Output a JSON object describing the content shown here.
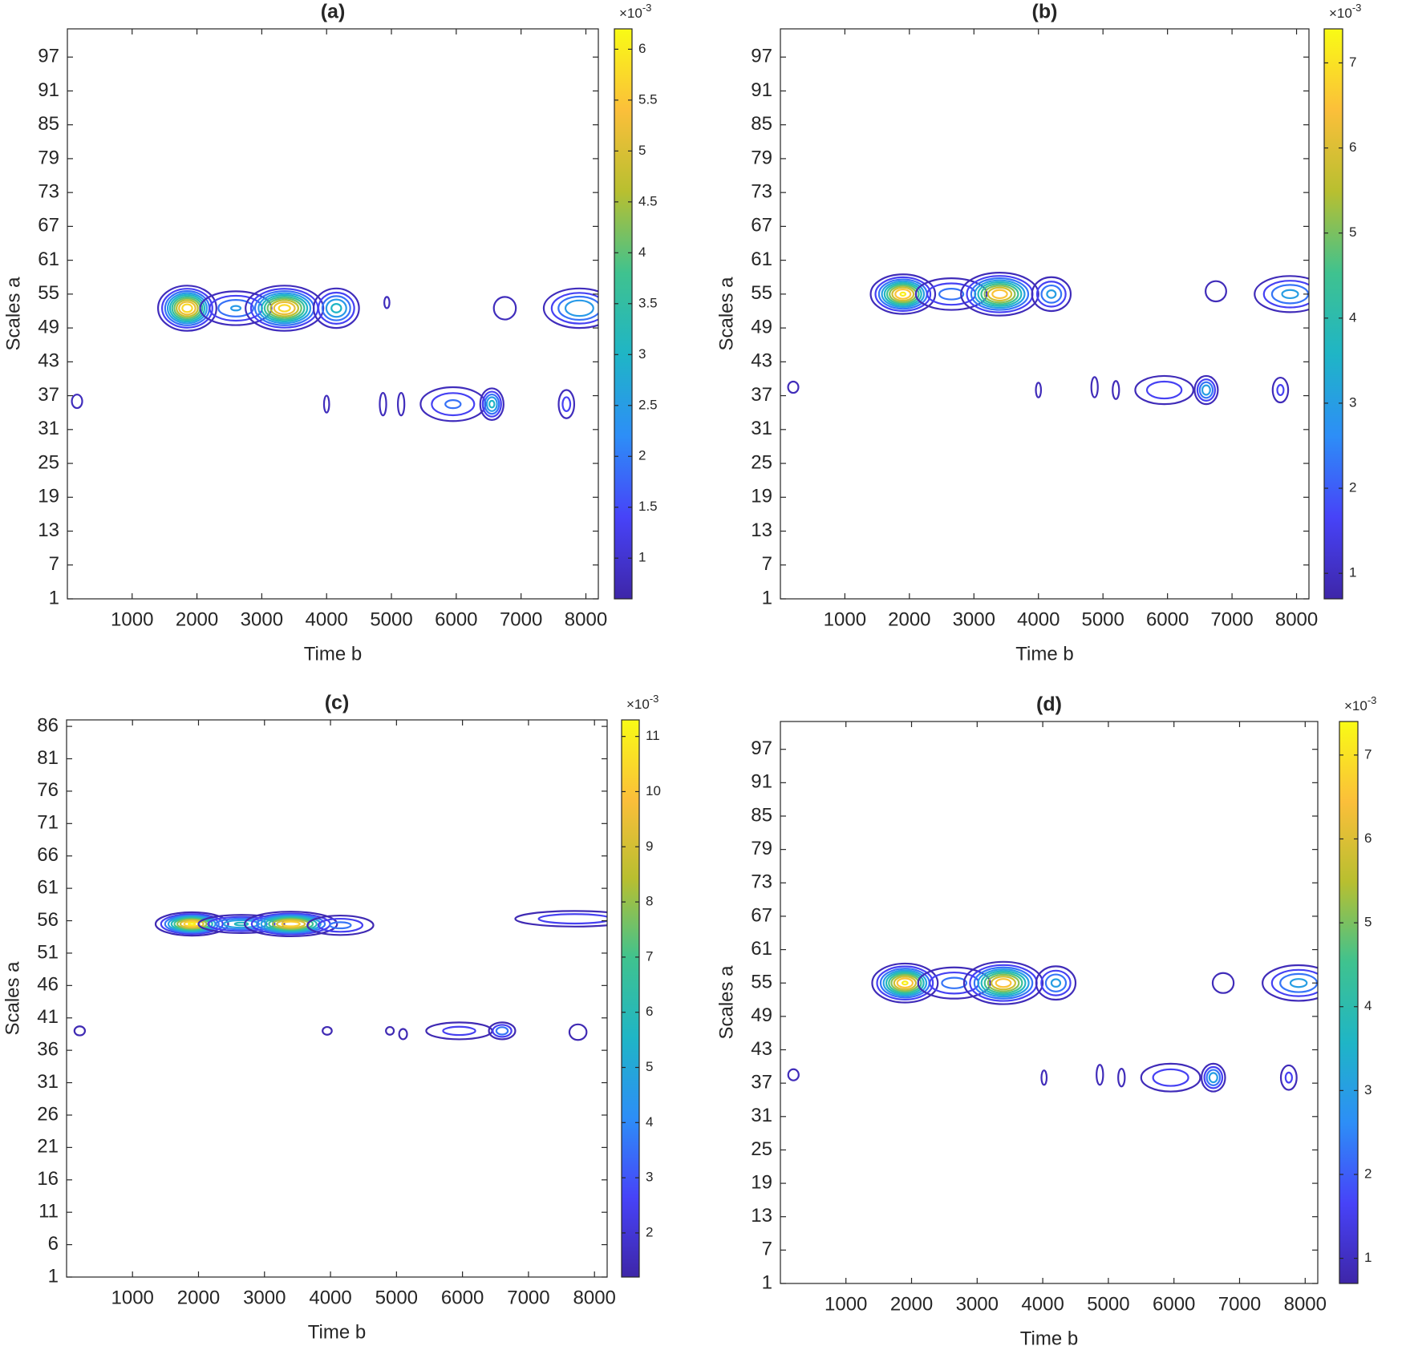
{
  "chart_data": [
    {
      "type": "contour",
      "title": "(a)",
      "xlabel": "Time b",
      "ylabel": "Scales a",
      "xlim": [
        1,
        8192
      ],
      "xticks": [
        1000,
        2000,
        3000,
        4000,
        5000,
        6000,
        7000,
        8000
      ],
      "ylim": [
        1,
        102
      ],
      "yticks": [
        1,
        7,
        13,
        19,
        25,
        31,
        37,
        43,
        49,
        55,
        61,
        67,
        73,
        79,
        85,
        91,
        97
      ],
      "clim": [
        0.6,
        6.2
      ],
      "cticks": [
        1,
        1.5,
        2,
        2.5,
        3,
        3.5,
        4,
        4.5,
        5,
        5.5,
        6
      ],
      "colorbar_multiplier": "×10",
      "colorbar_exponent": "-3",
      "colormap": [
        "#3e26a8",
        "#4743f8",
        "#2d8ef7",
        "#1fb5c6",
        "#3fc28f",
        "#b8bf30",
        "#fbbf3a",
        "#f9fb15"
      ],
      "levels": [
        0.8,
        1.35,
        1.9,
        2.45,
        3.0,
        3.55,
        4.1,
        4.65,
        5.2,
        5.75
      ],
      "blobs": [
        {
          "x": 1850,
          "y": 52.5,
          "dx": 450,
          "dy": 4,
          "peak": 6.1
        },
        {
          "x": 2600,
          "y": 52.5,
          "dx": 550,
          "dy": 3,
          "peak": 2.5
        },
        {
          "x": 3350,
          "y": 52.5,
          "dx": 600,
          "dy": 4,
          "peak": 6.0
        },
        {
          "x": 4150,
          "y": 52.5,
          "dx": 350,
          "dy": 3.5,
          "peak": 3.2
        },
        {
          "x": 4930,
          "y": 53.5,
          "dx": 40,
          "dy": 1,
          "peak": 1.0
        },
        {
          "x": 6750,
          "y": 52.5,
          "dx": 170,
          "dy": 2,
          "peak": 1.0
        },
        {
          "x": 7900,
          "y": 52.5,
          "dx": 550,
          "dy": 3.5,
          "peak": 3.0
        },
        {
          "x": 150,
          "y": 36,
          "dx": 80,
          "dy": 1.2,
          "peak": 1.0
        },
        {
          "x": 4000,
          "y": 35.5,
          "dx": 40,
          "dy": 1.5,
          "peak": 1.0
        },
        {
          "x": 4870,
          "y": 35.5,
          "dx": 50,
          "dy": 2,
          "peak": 1.0
        },
        {
          "x": 5150,
          "y": 35.5,
          "dx": 50,
          "dy": 2,
          "peak": 1.0
        },
        {
          "x": 5950,
          "y": 35.5,
          "dx": 500,
          "dy": 3,
          "peak": 2.0
        },
        {
          "x": 6550,
          "y": 35.5,
          "dx": 180,
          "dy": 2.8,
          "peak": 3.2
        },
        {
          "x": 7700,
          "y": 35.5,
          "dx": 120,
          "dy": 2.5,
          "peak": 1.6
        }
      ]
    },
    {
      "type": "contour",
      "title": "(b)",
      "xlabel": "Time b",
      "ylabel": "Scales a",
      "xlim": [
        1,
        8192
      ],
      "xticks": [
        1000,
        2000,
        3000,
        4000,
        5000,
        6000,
        7000,
        8000
      ],
      "ylim": [
        1,
        102
      ],
      "yticks": [
        1,
        7,
        13,
        19,
        25,
        31,
        37,
        43,
        49,
        55,
        61,
        67,
        73,
        79,
        85,
        91,
        97
      ],
      "clim": [
        0.7,
        7.4
      ],
      "cticks": [
        1,
        2,
        3,
        4,
        5,
        6,
        7
      ],
      "colorbar_multiplier": "×10",
      "colorbar_exponent": "-3",
      "colormap": [
        "#3e26a8",
        "#4743f8",
        "#2d8ef7",
        "#1fb5c6",
        "#3fc28f",
        "#b8bf30",
        "#fbbf3a",
        "#f9fb15"
      ],
      "levels": [
        0.9,
        1.6,
        2.3,
        3.0,
        3.7,
        4.4,
        5.1,
        5.8,
        6.5,
        7.2
      ],
      "blobs": [
        {
          "x": 1900,
          "y": 55,
          "dx": 500,
          "dy": 3.5,
          "peak": 7.3
        },
        {
          "x": 2650,
          "y": 55,
          "dx": 550,
          "dy": 2.8,
          "peak": 2.6
        },
        {
          "x": 3400,
          "y": 55,
          "dx": 600,
          "dy": 3.8,
          "peak": 7.0
        },
        {
          "x": 4200,
          "y": 55,
          "dx": 300,
          "dy": 3,
          "peak": 3.2
        },
        {
          "x": 6750,
          "y": 55.5,
          "dx": 160,
          "dy": 1.8,
          "peak": 1.1
        },
        {
          "x": 7900,
          "y": 55,
          "dx": 550,
          "dy": 3.2,
          "peak": 3.2
        },
        {
          "x": 200,
          "y": 38.5,
          "dx": 80,
          "dy": 1,
          "peak": 1.1
        },
        {
          "x": 4000,
          "y": 38,
          "dx": 40,
          "dy": 1.3,
          "peak": 1.1
        },
        {
          "x": 4870,
          "y": 38.5,
          "dx": 50,
          "dy": 1.8,
          "peak": 1.1
        },
        {
          "x": 5200,
          "y": 38,
          "dx": 50,
          "dy": 1.6,
          "peak": 1.1
        },
        {
          "x": 5950,
          "y": 38,
          "dx": 450,
          "dy": 2.5,
          "peak": 2.2
        },
        {
          "x": 6600,
          "y": 38,
          "dx": 180,
          "dy": 2.5,
          "peak": 3.5
        },
        {
          "x": 7750,
          "y": 38,
          "dx": 120,
          "dy": 2.2,
          "peak": 1.8
        }
      ]
    },
    {
      "type": "contour",
      "title": "(c)",
      "xlabel": "Time b",
      "ylabel": "Scales a",
      "xlim": [
        1,
        8192
      ],
      "xticks": [
        1000,
        2000,
        3000,
        4000,
        5000,
        6000,
        7000,
        8000
      ],
      "ylim": [
        1,
        87
      ],
      "yticks": [
        1,
        6,
        11,
        16,
        21,
        26,
        31,
        36,
        41,
        46,
        51,
        56,
        61,
        66,
        71,
        76,
        81,
        86
      ],
      "clim": [
        1.2,
        11.3
      ],
      "cticks": [
        2,
        3,
        4,
        5,
        6,
        7,
        8,
        9,
        10,
        11
      ],
      "colorbar_multiplier": "×10",
      "colorbar_exponent": "-3",
      "colormap": [
        "#3e26a8",
        "#4743f8",
        "#2d8ef7",
        "#1fb5c6",
        "#3fc28f",
        "#b8bf30",
        "#fbbf3a",
        "#f9fb15"
      ],
      "levels": [
        1.4,
        2.5,
        3.6,
        4.7,
        5.8,
        6.9,
        8.0,
        9.1,
        10.2,
        11.0
      ],
      "blobs": [
        {
          "x": 1900,
          "y": 55.5,
          "dx": 550,
          "dy": 1.8,
          "peak": 11.2
        },
        {
          "x": 2650,
          "y": 55.5,
          "dx": 650,
          "dy": 1.4,
          "peak": 6.0
        },
        {
          "x": 3400,
          "y": 55.5,
          "dx": 700,
          "dy": 1.9,
          "peak": 11.0
        },
        {
          "x": 4150,
          "y": 55.3,
          "dx": 500,
          "dy": 1.5,
          "peak": 4.0
        },
        {
          "x": 7700,
          "y": 56.3,
          "dx": 900,
          "dy": 1.2,
          "peak": 3.5
        },
        {
          "x": 200,
          "y": 39,
          "dx": 80,
          "dy": 0.7,
          "peak": 1.6
        },
        {
          "x": 3950,
          "y": 39,
          "dx": 70,
          "dy": 0.6,
          "peak": 1.6
        },
        {
          "x": 4900,
          "y": 39,
          "dx": 60,
          "dy": 0.6,
          "peak": 1.6
        },
        {
          "x": 5100,
          "y": 38.5,
          "dx": 60,
          "dy": 0.8,
          "peak": 1.6
        },
        {
          "x": 5950,
          "y": 39,
          "dx": 500,
          "dy": 1.3,
          "peak": 3.0
        },
        {
          "x": 6600,
          "y": 39,
          "dx": 200,
          "dy": 1.3,
          "peak": 4.5
        },
        {
          "x": 7750,
          "y": 38.8,
          "dx": 130,
          "dy": 1.2,
          "peak": 2.2
        }
      ]
    },
    {
      "type": "contour",
      "title": "(d)",
      "xlabel": "Time b",
      "ylabel": "Scales a",
      "xlim": [
        1,
        8192
      ],
      "xticks": [
        1000,
        2000,
        3000,
        4000,
        5000,
        6000,
        7000,
        8000
      ],
      "ylim": [
        1,
        102
      ],
      "yticks": [
        1,
        7,
        13,
        19,
        25,
        31,
        37,
        43,
        49,
        55,
        61,
        67,
        73,
        79,
        85,
        91,
        97
      ],
      "clim": [
        0.7,
        7.4
      ],
      "cticks": [
        1,
        2,
        3,
        4,
        5,
        6,
        7
      ],
      "colorbar_multiplier": "×10",
      "colorbar_exponent": "-3",
      "colormap": [
        "#3e26a8",
        "#4743f8",
        "#2d8ef7",
        "#1fb5c6",
        "#3fc28f",
        "#b8bf30",
        "#fbbf3a",
        "#f9fb15"
      ],
      "levels": [
        0.9,
        1.6,
        2.3,
        3.0,
        3.7,
        4.4,
        5.1,
        5.8,
        6.5,
        7.2
      ],
      "blobs": [
        {
          "x": 1900,
          "y": 55,
          "dx": 500,
          "dy": 3.5,
          "peak": 7.3
        },
        {
          "x": 2650,
          "y": 55,
          "dx": 550,
          "dy": 2.8,
          "peak": 2.6
        },
        {
          "x": 3400,
          "y": 55,
          "dx": 600,
          "dy": 3.8,
          "peak": 7.0
        },
        {
          "x": 4200,
          "y": 55,
          "dx": 300,
          "dy": 3,
          "peak": 3.2
        },
        {
          "x": 6750,
          "y": 55,
          "dx": 160,
          "dy": 1.8,
          "peak": 1.1
        },
        {
          "x": 7900,
          "y": 55,
          "dx": 550,
          "dy": 3.2,
          "peak": 3.2
        },
        {
          "x": 200,
          "y": 38.5,
          "dx": 80,
          "dy": 1,
          "peak": 1.1
        },
        {
          "x": 4020,
          "y": 38,
          "dx": 40,
          "dy": 1.3,
          "peak": 1.1
        },
        {
          "x": 4870,
          "y": 38.5,
          "dx": 50,
          "dy": 1.8,
          "peak": 1.1
        },
        {
          "x": 5200,
          "y": 38,
          "dx": 50,
          "dy": 1.6,
          "peak": 1.1
        },
        {
          "x": 5950,
          "y": 38,
          "dx": 450,
          "dy": 2.5,
          "peak": 2.2
        },
        {
          "x": 6600,
          "y": 38,
          "dx": 180,
          "dy": 2.5,
          "peak": 3.5
        },
        {
          "x": 7750,
          "y": 38,
          "dx": 120,
          "dy": 2.2,
          "peak": 1.8
        }
      ]
    }
  ]
}
